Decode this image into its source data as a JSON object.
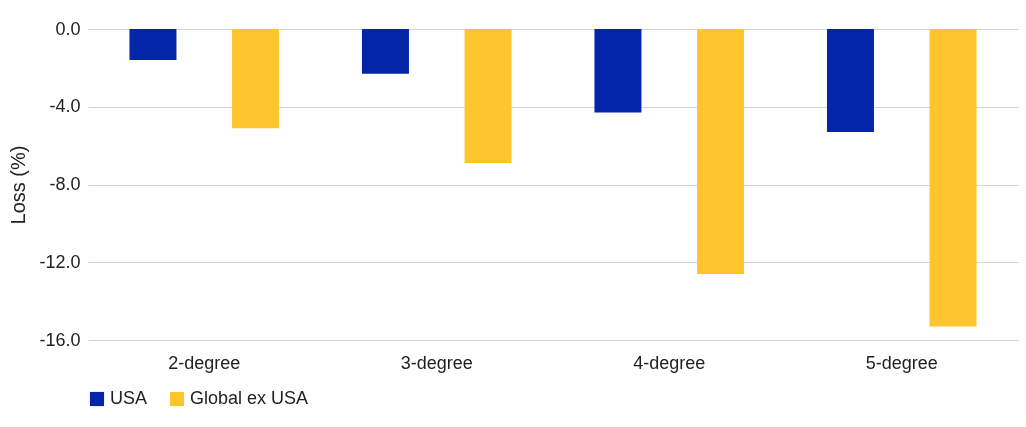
{
  "chart_data": {
    "type": "bar",
    "ylabel": "Loss (%)",
    "categories": [
      "2-degree",
      "3-degree",
      "4-degree",
      "5-degree"
    ],
    "series": [
      {
        "name": "USA",
        "color": "#0525a8",
        "values": [
          -1.6,
          -2.3,
          -4.3,
          -5.3
        ]
      },
      {
        "name": "Global ex USA",
        "color": "#ffc52f",
        "values": [
          -5.1,
          -6.9,
          -12.6,
          -15.3
        ]
      }
    ],
    "ylim": [
      -16,
      0
    ],
    "yticks": [
      {
        "value": 0,
        "label": "0.0"
      },
      {
        "value": -4,
        "label": "-4.0"
      },
      {
        "value": -8,
        "label": "-8.0"
      },
      {
        "value": -12,
        "label": "-12.0"
      },
      {
        "value": -16,
        "label": "-16.0"
      }
    ],
    "grid": "y",
    "legend": "bottom"
  }
}
